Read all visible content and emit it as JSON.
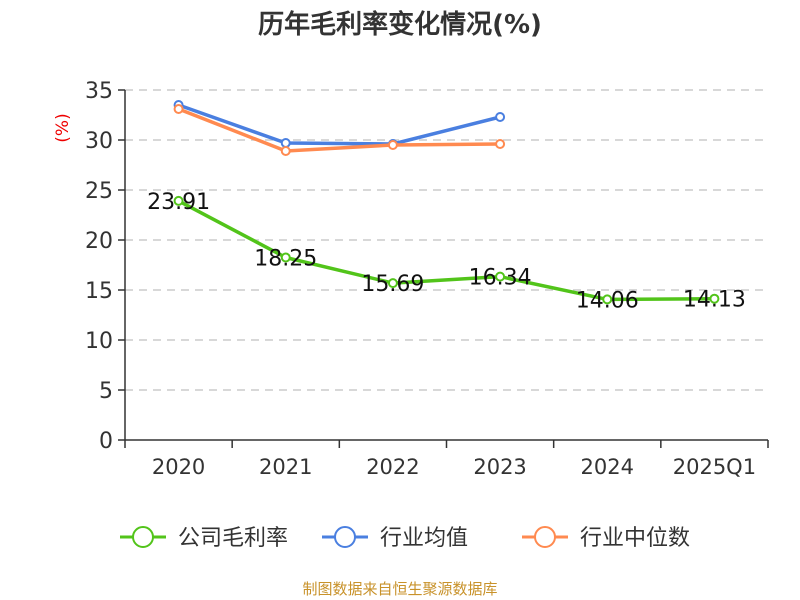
{
  "chart_data": {
    "type": "line",
    "title": "历年毛利率变化情况(%)",
    "ylabel": "(%)",
    "xlabel": "",
    "categories": [
      "2020",
      "2021",
      "2022",
      "2023",
      "2024",
      "2025Q1"
    ],
    "ylim": [
      0,
      35
    ],
    "yticks": [
      0,
      5,
      10,
      15,
      20,
      25,
      30,
      35
    ],
    "grid": true,
    "legend_position": "bottom",
    "series": [
      {
        "name": "公司毛利率",
        "color": "#52c41a",
        "values": [
          23.91,
          18.25,
          15.69,
          16.34,
          14.06,
          14.13
        ],
        "labels": [
          "23.91",
          "18.25",
          "15.69",
          "16.34",
          "14.06",
          "14.13"
        ]
      },
      {
        "name": "行业均值",
        "color": "#4a7fe0",
        "values": [
          33.5,
          29.7,
          29.6,
          32.3,
          null,
          null
        ]
      },
      {
        "name": "行业中位数",
        "color": "#ff8a50",
        "values": [
          33.1,
          28.9,
          29.5,
          29.6,
          null,
          null
        ]
      }
    ]
  },
  "footer": {
    "source": "制图数据来自恒生聚源数据库"
  }
}
